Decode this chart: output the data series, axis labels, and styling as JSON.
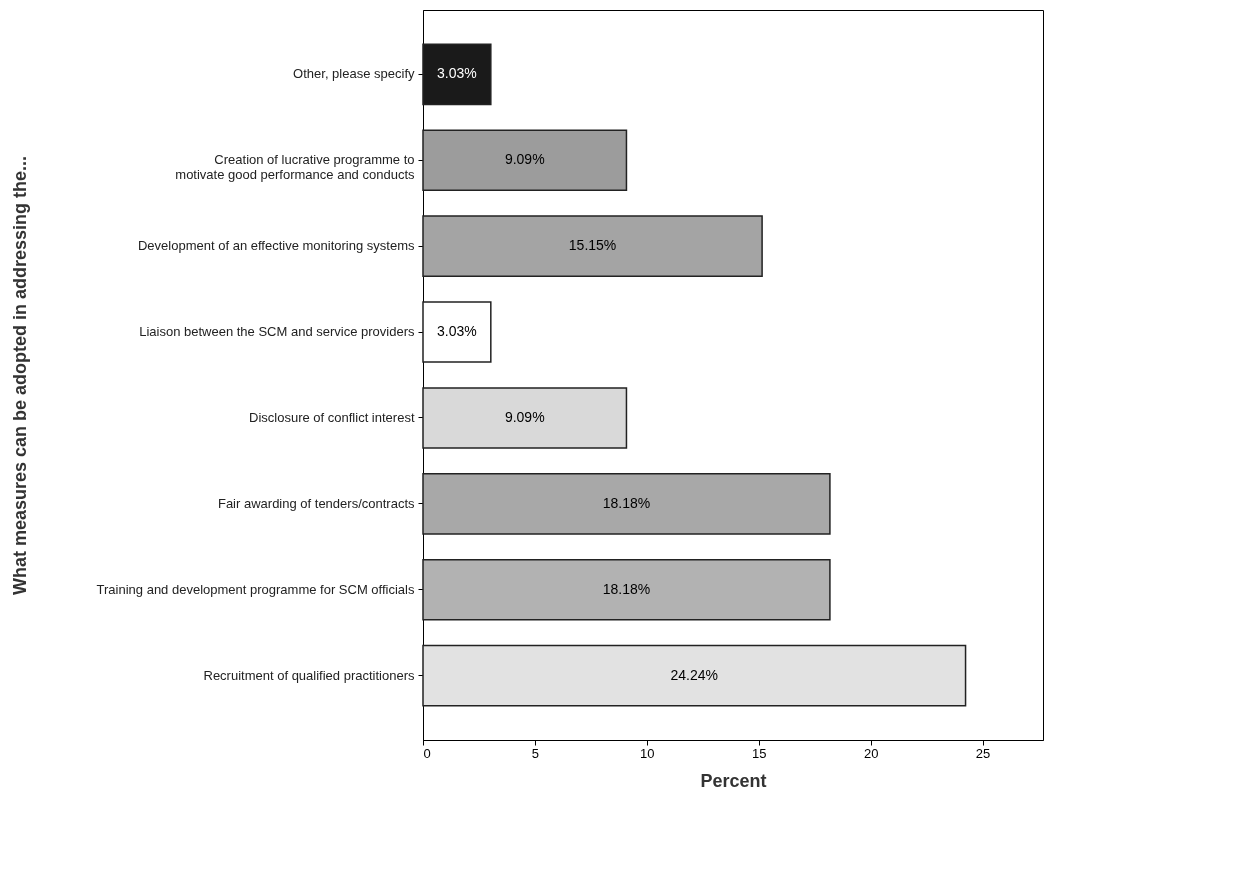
{
  "chart_data": {
    "type": "bar",
    "orientation": "horizontal",
    "xlabel": "Percent",
    "ylabel": "What measures can be adopted in addressing the...",
    "categories": [
      "Other, please specify",
      "Creation of lucrative programme to motivate good performance and conducts",
      "Development of an effective monitoring systems",
      "Liaison between the SCM and service providers",
      "Disclosure of conflict interest",
      "Fair awarding of tenders/contracts",
      "Training and development programme for SCM officials",
      "Recruitment of qualified practitioners"
    ],
    "values": [
      3.03,
      9.09,
      15.15,
      3.03,
      9.09,
      18.18,
      18.18,
      24.24
    ],
    "value_labels": [
      "3.03%",
      "9.09%",
      "15.15%",
      "3.03%",
      "9.09%",
      "18.18%",
      "18.18%",
      "24.24%"
    ],
    "colors": [
      "#1a1a1a",
      "#9c9c9c",
      "#a4a4a4",
      "#ffffff",
      "#d9d9d9",
      "#a8a8a8",
      "#b2b2b2",
      "#e2e2e2"
    ],
    "xlim": [
      0,
      27.7
    ],
    "xticks": [
      0,
      5,
      10,
      15,
      20,
      25
    ],
    "grid": false
  }
}
